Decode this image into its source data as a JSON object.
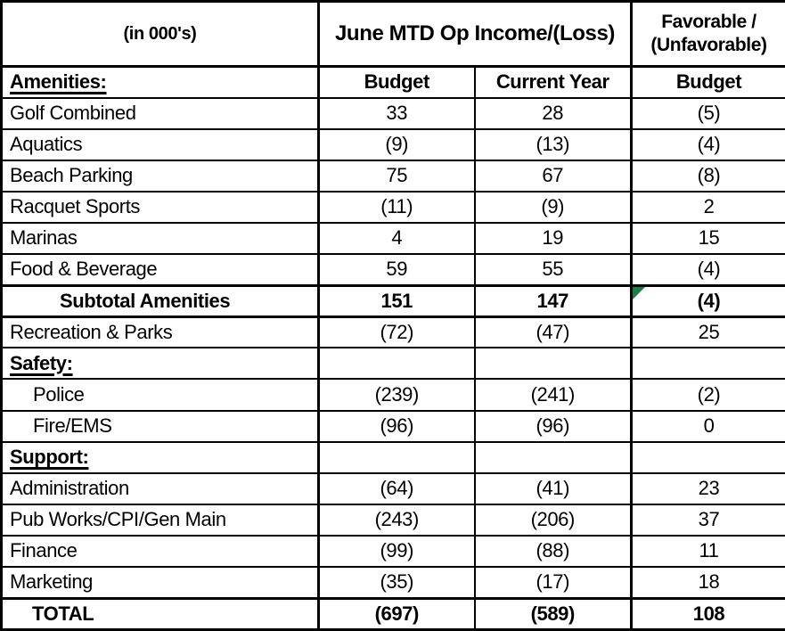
{
  "header": {
    "units_label": "(in 000's)",
    "group_title": "June MTD Op Income/(Loss)",
    "favorable_line1": "Favorable /",
    "favorable_line2": "(Unfavorable)"
  },
  "columns": {
    "section_label": "Amenities:",
    "budget": "Budget",
    "current_year": "Current Year",
    "favorable_budget": "Budget"
  },
  "rows": [
    {
      "label": "Golf Combined",
      "budget": "33",
      "current": "28",
      "fav": "(5)",
      "style": "data"
    },
    {
      "label": "Aquatics",
      "budget": "(9)",
      "current": "(13)",
      "fav": "(4)",
      "style": "data"
    },
    {
      "label": "Beach Parking",
      "budget": "75",
      "current": "67",
      "fav": "(8)",
      "style": "data"
    },
    {
      "label": "Racquet Sports",
      "budget": "(11)",
      "current": "(9)",
      "fav": "2",
      "style": "data"
    },
    {
      "label": "Marinas",
      "budget": "4",
      "current": "19",
      "fav": "15",
      "style": "data"
    },
    {
      "label": "Food & Beverage",
      "budget": "59",
      "current": "55",
      "fav": "(4)",
      "style": "data"
    },
    {
      "label": "Subtotal Amenities",
      "budget": "151",
      "current": "147",
      "fav": "(4)",
      "style": "subtotal",
      "flag": true
    },
    {
      "label": "Recreation & Parks",
      "budget": "(72)",
      "current": "(47)",
      "fav": "25",
      "style": "data"
    },
    {
      "label": "Safety:",
      "budget": "",
      "current": "",
      "fav": "",
      "style": "section"
    },
    {
      "label": "Police",
      "budget": "(239)",
      "current": "(241)",
      "fav": "(2)",
      "style": "indent"
    },
    {
      "label": "Fire/EMS",
      "budget": "(96)",
      "current": "(96)",
      "fav": "0",
      "style": "indent"
    },
    {
      "label": "Support:",
      "budget": "",
      "current": "",
      "fav": "",
      "style": "section"
    },
    {
      "label": "Administration",
      "budget": "(64)",
      "current": "(41)",
      "fav": "23",
      "style": "data"
    },
    {
      "label": "Pub Works/CPI/Gen Main",
      "budget": "(243)",
      "current": "(206)",
      "fav": "37",
      "style": "data"
    },
    {
      "label": "Finance",
      "budget": "(99)",
      "current": "(88)",
      "fav": "11",
      "style": "data"
    },
    {
      "label": "Marketing",
      "budget": "(35)",
      "current": "(17)",
      "fav": "18",
      "style": "data"
    },
    {
      "label": "TOTAL",
      "budget": "(697)",
      "current": "(589)",
      "fav": "108",
      "style": "total"
    }
  ],
  "colors": {
    "flag_green": "#1E7E45",
    "border_black": "#000000",
    "background": "#FFFFFF"
  }
}
